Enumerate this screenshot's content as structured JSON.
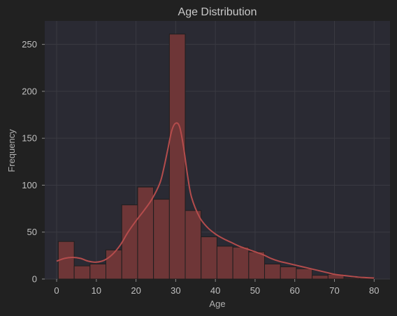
{
  "chart_data": {
    "type": "bar",
    "title": "Age Distribution",
    "xlabel": "Age",
    "ylabel": "Frequency",
    "xlim": [
      -3,
      84
    ],
    "ylim": [
      0,
      275
    ],
    "xticks": [
      0,
      10,
      20,
      30,
      40,
      50,
      60,
      70,
      80
    ],
    "yticks": [
      0,
      50,
      100,
      150,
      200,
      250
    ],
    "grid": true,
    "bin_edges": [
      0.42,
      4.42,
      8.41,
      12.41,
      16.41,
      20.41,
      24.41,
      28.41,
      32.4,
      36.4,
      40.4,
      44.4,
      48.4,
      52.39,
      56.39,
      60.39,
      64.39,
      68.39,
      72.38,
      76.38,
      80.0
    ],
    "values": [
      40,
      14,
      16,
      31,
      79,
      98,
      85,
      261,
      73,
      45,
      35,
      34,
      29,
      16,
      13,
      11,
      4,
      5,
      1,
      1
    ],
    "kde": {
      "x": [
        0,
        2,
        4,
        6,
        8,
        10,
        12,
        14,
        16,
        18,
        20,
        22,
        24,
        26,
        27,
        28,
        29,
        30,
        31,
        32,
        33,
        34,
        36,
        38,
        40,
        42,
        44,
        46,
        48,
        50,
        52,
        54,
        56,
        58,
        60,
        62,
        64,
        66,
        68,
        70,
        72,
        74,
        76,
        78,
        80
      ],
      "y": [
        19,
        22,
        23,
        22,
        19,
        18,
        20,
        26,
        36,
        50,
        62,
        73,
        85,
        102,
        118,
        138,
        158,
        166,
        162,
        140,
        110,
        87,
        66,
        55,
        48,
        43,
        39,
        35,
        32,
        29,
        26,
        22,
        19,
        17,
        15,
        13,
        11,
        9,
        7,
        5,
        4,
        3,
        2,
        1.5,
        1
      ]
    },
    "colors": {
      "background": "#212121",
      "plot_bg": "#2a2a33",
      "bar_fill": "#6e3637",
      "bar_edge": "#1e1e1e",
      "kde_line": "#b44c4c",
      "grid": "#3a3a42",
      "text": "#c9c9c9"
    }
  }
}
